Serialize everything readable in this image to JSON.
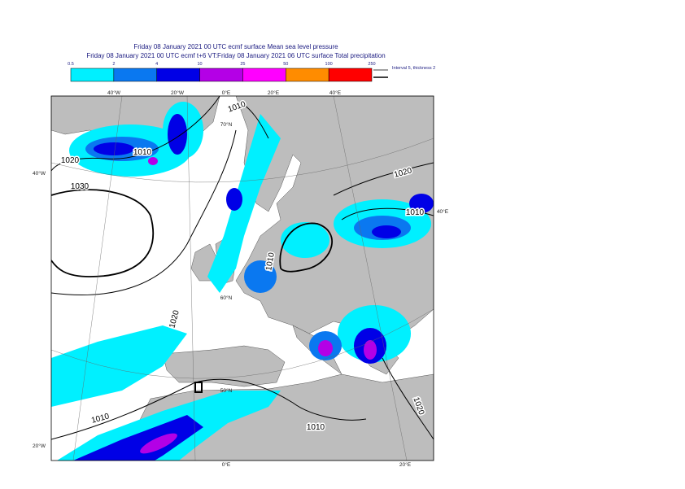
{
  "header": {
    "line1": "Friday 08 January 2021 00 UTC ecmf surface  Mean sea level pressure",
    "line2": "Friday 08 January 2021 00 UTC ecmf t+6 VT:Friday 08 January 2021 06 UTC surface  Total precipitation"
  },
  "colorbar": {
    "labels": [
      "0.5",
      "2",
      "4",
      "10",
      "25",
      "50",
      "100",
      "250"
    ],
    "colors": [
      "#00f0ff",
      "#0a78f0",
      "#0000e6",
      "#b400e6",
      "#ff00ff",
      "#ff8c00",
      "#ff0000"
    ]
  },
  "legend": "Interval 5, thickness 2",
  "grid_labels": [
    "40°W",
    "20°W",
    "0°E",
    "20°E",
    "40°E",
    "40°W",
    "20°W",
    "40°E",
    "0°E",
    "20°E",
    "70°N",
    "60°N",
    "50°N"
  ],
  "isobar_labels": [
    "1010",
    "1010",
    "1020",
    "1030",
    "1020",
    "1010",
    "1010",
    "1020",
    "1010",
    "1010",
    "1020"
  ]
}
